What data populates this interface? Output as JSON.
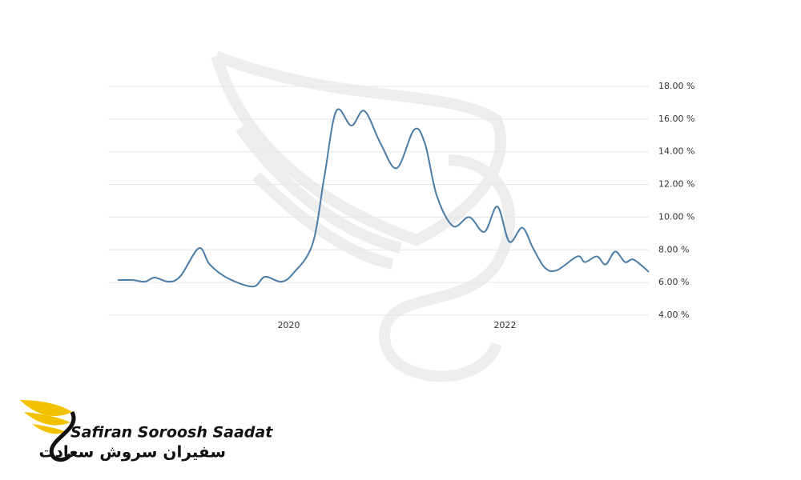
{
  "chart_data": {
    "type": "line",
    "x": [
      2018.42,
      2018.56,
      2018.67,
      2018.76,
      2018.89,
      2019.0,
      2019.17,
      2019.27,
      2019.44,
      2019.67,
      2019.78,
      2019.93,
      2020.04,
      2020.22,
      2020.33,
      2020.44,
      2020.58,
      2020.7,
      2020.85,
      2021.0,
      2021.16,
      2021.26,
      2021.37,
      2021.52,
      2021.67,
      2021.81,
      2021.93,
      2022.04,
      2022.16,
      2022.26,
      2022.37,
      2022.48,
      2022.67,
      2022.74,
      2022.85,
      2022.93,
      2023.02,
      2023.11,
      2023.19,
      2023.33
    ],
    "series": [
      {
        "color": "#4a7ca8",
        "values": [
          6.15,
          6.15,
          6.05,
          6.3,
          6.05,
          6.4,
          8.1,
          7.1,
          6.25,
          5.75,
          6.35,
          6.05,
          6.55,
          8.35,
          12.5,
          16.5,
          15.6,
          16.5,
          14.5,
          13.0,
          15.35,
          14.5,
          11.3,
          9.45,
          10.0,
          9.1,
          10.65,
          8.5,
          9.35,
          8.1,
          6.9,
          6.75,
          7.6,
          7.25,
          7.6,
          7.1,
          7.9,
          7.25,
          7.4,
          6.65
        ]
      }
    ],
    "xlim": [
      2018.33,
      2023.33
    ],
    "xticks": [
      2020,
      2022
    ],
    "ylim": [
      4,
      18
    ],
    "yticks": [
      {
        "value": 4,
        "label": "4.00 %"
      },
      {
        "value": 6,
        "label": "6.00 %"
      },
      {
        "value": 8,
        "label": "8.00 %"
      },
      {
        "value": 10,
        "label": "10.00 %"
      },
      {
        "value": 12,
        "label": "12.00 %"
      },
      {
        "value": 14,
        "label": "14.00 %"
      },
      {
        "value": 16,
        "label": "16.00 %"
      },
      {
        "value": 18,
        "label": "18.00 %"
      }
    ],
    "grid": true
  },
  "logo": {
    "name": "Safiran Soroosh Saadat",
    "name_fa": "سفیران سروش سعادت"
  }
}
